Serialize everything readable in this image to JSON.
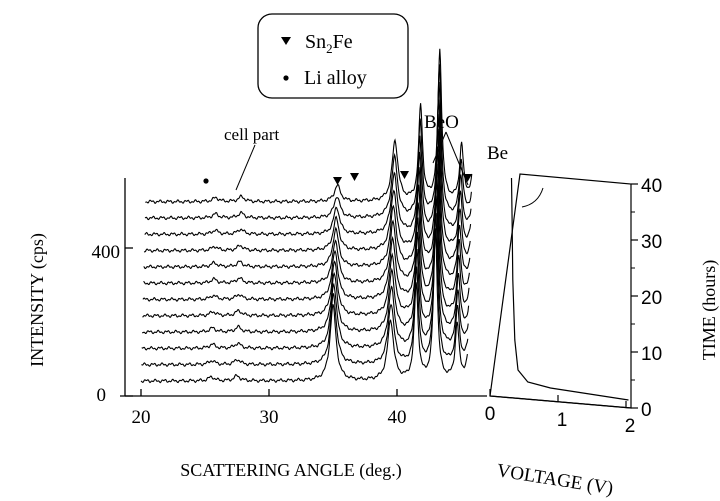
{
  "chart_data": {
    "type": "line",
    "legend": {
      "placement": "top-center",
      "entries": [
        {
          "marker": "triangle-down",
          "label_main": "Sn",
          "label_sub": "2",
          "label_tail": "Fe"
        },
        {
          "marker": "dot",
          "label": "Li alloy"
        }
      ]
    },
    "x_axis": {
      "label": "SCATTERING ANGLE (deg.)",
      "ticks": [
        "20",
        "30",
        "40"
      ],
      "tick_values": [
        20,
        30,
        40
      ],
      "range": [
        18,
        46
      ]
    },
    "y_axis": {
      "label": "INTENSITY (cps)",
      "ticks": [
        "0",
        "400"
      ],
      "tick_values": [
        0,
        400
      ]
    },
    "voltage_axis": {
      "label": "VOLTAGE (V)",
      "ticks": [
        "0",
        "1",
        "2"
      ],
      "tick_values": [
        0,
        1,
        2
      ]
    },
    "time_axis": {
      "label": "TIME (hours)",
      "ticks": [
        "0",
        "10",
        "20",
        "30",
        "40"
      ],
      "tick_values": [
        0,
        10,
        20,
        30,
        40
      ]
    },
    "annotations": {
      "cell_part": "cell part",
      "beo": "BeO",
      "be": "Be"
    },
    "series_count": 12,
    "peaks": [
      {
        "angle": 25.5,
        "height": 8,
        "label": "Li alloy"
      },
      {
        "angle": 27.5,
        "height": 10
      },
      {
        "angle": 35.0,
        "height": 150,
        "label": "Sn2Fe"
      },
      {
        "angle": 39.5,
        "height": 120
      },
      {
        "angle": 41.5,
        "height": 190
      },
      {
        "angle": 43.0,
        "height": 300,
        "label": "BeO"
      },
      {
        "angle": 44.7,
        "height": 110
      },
      {
        "angle": 45.8,
        "height": 170,
        "label": "Be"
      }
    ],
    "voltage_curve": [
      {
        "time": 0,
        "voltage": 1.9
      },
      {
        "time": 1,
        "voltage": 1.3
      },
      {
        "time": 2,
        "voltage": 0.7
      },
      {
        "time": 3,
        "voltage": 0.35
      },
      {
        "time": 5,
        "voltage": 0.2
      },
      {
        "time": 10,
        "voltage": 0.15
      },
      {
        "time": 20,
        "voltage": 0.12
      },
      {
        "time": 30,
        "voltage": 0.11
      },
      {
        "time": 37,
        "voltage": 0.1
      }
    ]
  }
}
